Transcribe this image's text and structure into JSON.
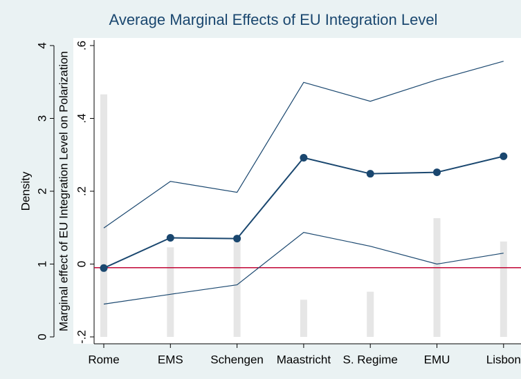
{
  "chart_data": {
    "type": "line",
    "title": "Average Marginal Effects of EU Integration Level",
    "ylabel": "Density",
    "y2label": "Marginal effect of EU Integration Level on Polarization",
    "categories": [
      "Rome",
      "EMS",
      "Schengen",
      "Maastricht",
      "S. Regime",
      "EMU",
      "Lisbon"
    ],
    "ylim": [
      0,
      4
    ],
    "yticks": [
      0,
      1,
      2,
      3,
      4
    ],
    "y2lim": [
      -0.2,
      0.6
    ],
    "y2ticks": [
      {
        "value": -0.2,
        "label": "-.2"
      },
      0,
      {
        "value": 0.2,
        "label": ".2"
      },
      {
        "value": 0.4,
        "label": ".4"
      },
      {
        "value": 0.6,
        "label": ".6"
      }
    ],
    "reference_line": {
      "value": -0.01,
      "color": "#c10534",
      "axis": "y2"
    },
    "series": [
      {
        "kind": "bar",
        "axis": "y",
        "color": "#e6e6e6",
        "values": [
          3.33,
          1.23,
          1.37,
          0.51,
          0.62,
          1.63,
          1.31
        ]
      },
      {
        "kind": "line",
        "axis": "y2",
        "color": "#1a476f",
        "values": [
          0.099,
          0.227,
          0.197,
          0.499,
          0.447,
          0.506,
          0.557
        ]
      },
      {
        "kind": "line",
        "axis": "y2",
        "color": "#1a476f",
        "values": [
          -0.11,
          -0.083,
          -0.057,
          0.087,
          0.049,
          0.0,
          0.03
        ]
      },
      {
        "kind": "line-marker",
        "axis": "y2",
        "color": "#1a476f",
        "values": [
          -0.011,
          0.072,
          0.07,
          0.292,
          0.248,
          0.252,
          0.296
        ]
      }
    ]
  }
}
